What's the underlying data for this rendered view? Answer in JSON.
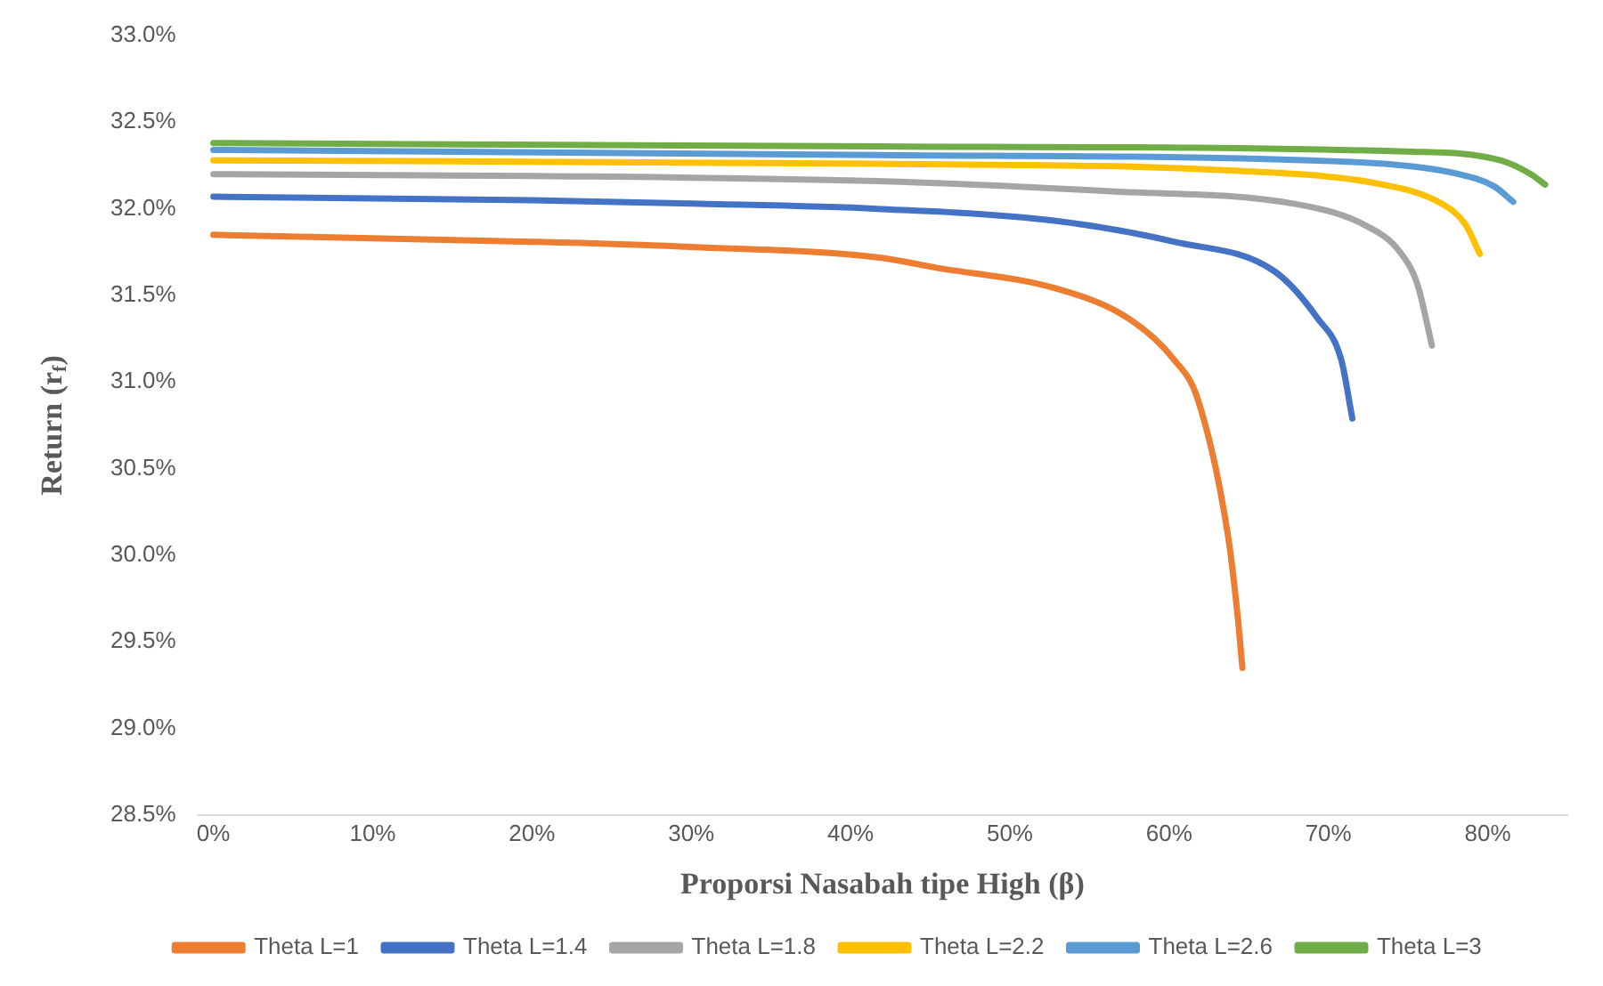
{
  "chart_data": {
    "type": "line",
    "xlabel": "Proporsi Nasabah tipe High (β)",
    "ylabel": "Return (r$_{f}$)",
    "xlim": [
      -1,
      85
    ],
    "xticks": [
      {
        "value": 0,
        "label": "0%"
      },
      {
        "value": 10,
        "label": "10%"
      },
      {
        "value": 20,
        "label": "20%"
      },
      {
        "value": 30,
        "label": "30%"
      },
      {
        "value": 40,
        "label": "40%"
      },
      {
        "value": 50,
        "label": "50%"
      },
      {
        "value": 60,
        "label": "60%"
      },
      {
        "value": 70,
        "label": "70%"
      },
      {
        "value": 80,
        "label": "80%"
      }
    ],
    "ylim": [
      28.5,
      33
    ],
    "yticks": [
      {
        "value": 28.5,
        "label": "28.5%"
      },
      {
        "value": 29,
        "label": "29.0%"
      },
      {
        "value": 29.5,
        "label": "29.5%"
      },
      {
        "value": 30,
        "label": "30.0%"
      },
      {
        "value": 30.5,
        "label": "30.5%"
      },
      {
        "value": 31,
        "label": "31.0%"
      },
      {
        "value": 31.5,
        "label": "31.5%"
      },
      {
        "value": 32,
        "label": "32.0%"
      },
      {
        "value": 32.5,
        "label": "32.5%"
      },
      {
        "value": 33,
        "label": "33.0%"
      }
    ],
    "grid": false,
    "legend": "bottom",
    "marker": "none",
    "line_style": "solid",
    "series": [
      {
        "name": "Theta L=1",
        "color": "#ed7d31",
        "x": [
          0,
          10,
          20,
          30,
          41.7,
          45.4,
          52.9,
          57.4,
          60.3,
          61.8,
          63.7,
          64.3,
          64.6
        ],
        "values": [
          31.85,
          31.83,
          31.81,
          31.78,
          31.72,
          31.66,
          31.54,
          31.37,
          31.13,
          30.9,
          30.11,
          29.65,
          29.35
        ]
      },
      {
        "name": "Theta L=1.4",
        "color": "#4472c4",
        "x": [
          0,
          20,
          30,
          41.7,
          52.9,
          60.3,
          66.6,
          69.3,
          70.8,
          71.5
        ],
        "values": [
          32.07,
          32.05,
          32.03,
          32.0,
          31.93,
          31.81,
          31.64,
          31.37,
          31.13,
          30.79
        ]
      },
      {
        "name": "Theta L=1.8",
        "color": "#a5a5a5",
        "x": [
          0,
          20,
          41.7,
          56.6,
          67.8,
          72.2,
          74.5,
          75.6,
          76.5
        ],
        "values": [
          32.2,
          32.19,
          32.16,
          32.1,
          32.03,
          31.91,
          31.75,
          31.56,
          31.21
        ]
      },
      {
        "name": "Theta L=2.2",
        "color": "#ffc000",
        "x": [
          0,
          41.7,
          64.1,
          73.4,
          77.1,
          78.6,
          79.5
        ],
        "values": [
          32.28,
          32.26,
          32.22,
          32.14,
          32.03,
          31.91,
          31.74
        ]
      },
      {
        "name": "Theta L=2.6",
        "color": "#5b9bd5",
        "x": [
          0,
          41.7,
          71.5,
          78.2,
          80.4,
          81.6
        ],
        "values": [
          32.34,
          32.31,
          32.27,
          32.2,
          32.13,
          32.04
        ]
      },
      {
        "name": "Theta L=3",
        "color": "#70ad47",
        "x": [
          0,
          41.7,
          75.2,
          80.8,
          82.7,
          83.6
        ],
        "values": [
          32.38,
          32.36,
          32.33,
          32.28,
          32.2,
          32.14
        ]
      }
    ]
  }
}
